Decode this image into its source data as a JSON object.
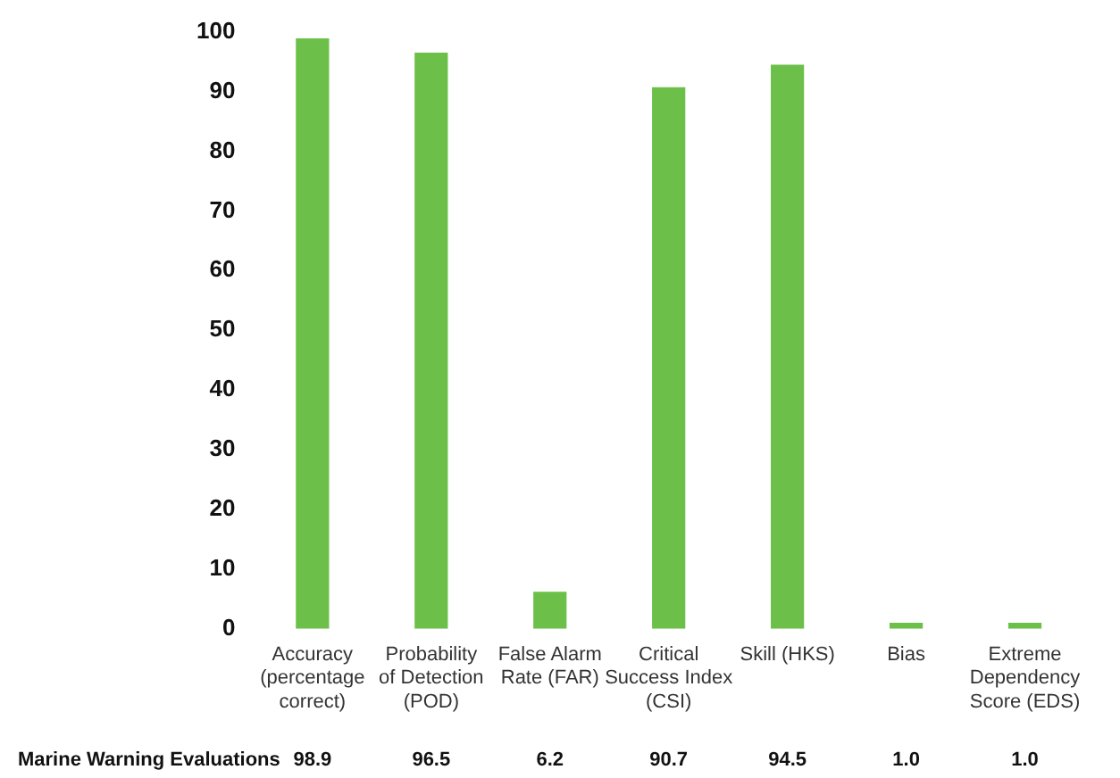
{
  "chart_data": {
    "type": "bar",
    "categories": [
      "Accuracy (percentage correct)",
      "Probability of Detection (POD)",
      "False Alarm Rate (FAR)",
      "Critical Success Index (CSI)",
      "Skill (HKS)",
      "Bias",
      "Extreme Dependency Score (EDS)"
    ],
    "series": [
      {
        "name": "Marine Warning Evaluations",
        "color": "#6cc04a",
        "values": [
          98.9,
          96.5,
          6.2,
          90.7,
          94.5,
          1.0,
          1.0
        ],
        "value_labels": [
          "98.9",
          "96.5",
          "6.2",
          "90.7",
          "94.5",
          "1.0",
          "1.0"
        ]
      }
    ],
    "ylim": [
      0,
      100
    ],
    "yticks": [
      0,
      10,
      20,
      30,
      40,
      50,
      60,
      70,
      80,
      90,
      100
    ],
    "grid": false,
    "legend": false
  }
}
